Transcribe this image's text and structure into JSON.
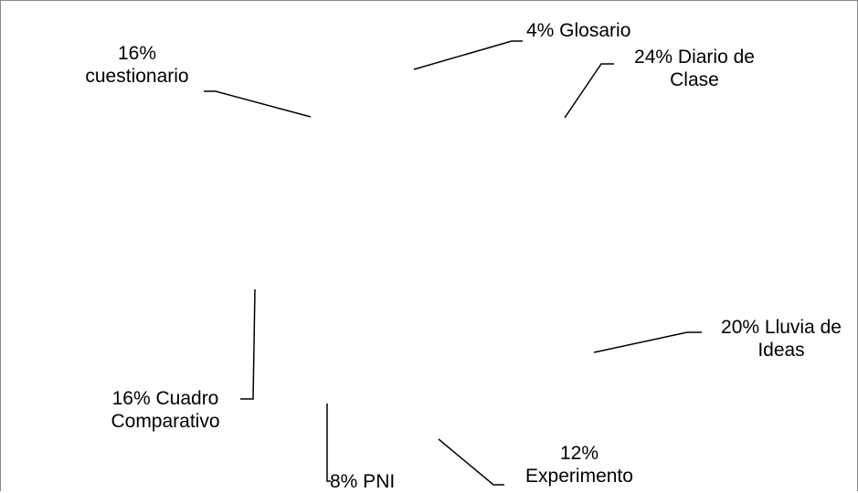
{
  "chart_data": {
    "type": "pie",
    "title": "",
    "slices": [
      {
        "label": "Glosario",
        "percent_text": "4%",
        "value": 4
      },
      {
        "label": "Diario de Clase",
        "percent_text": "24%",
        "value": 24
      },
      {
        "label": "Lluvia de Ideas",
        "percent_text": "20%",
        "value": 20
      },
      {
        "label": "Experimento",
        "percent_text": "12%",
        "value": 12
      },
      {
        "label": "PNI",
        "percent_text": "8%",
        "value": 8
      },
      {
        "label": "Cuadro Comparativo",
        "percent_text": "16%",
        "value": 16
      },
      {
        "label": "cuestionario",
        "percent_text": "16%",
        "value": 16
      }
    ],
    "colors": {
      "border": "#888888",
      "leader": "#000000",
      "text": "#000000"
    }
  },
  "labels": {
    "glosario": [
      "4% Glosario"
    ],
    "diario": [
      "24% Diario de",
      "Clase"
    ],
    "lluvia": [
      "20% Lluvia de",
      "Ideas"
    ],
    "experimento": [
      "12%",
      "Experimento"
    ],
    "pni": [
      "8% PNI"
    ],
    "cuadro": [
      "16% Cuadro",
      "Comparativo"
    ],
    "cuestionario": [
      "16%",
      "cuestionario"
    ]
  }
}
